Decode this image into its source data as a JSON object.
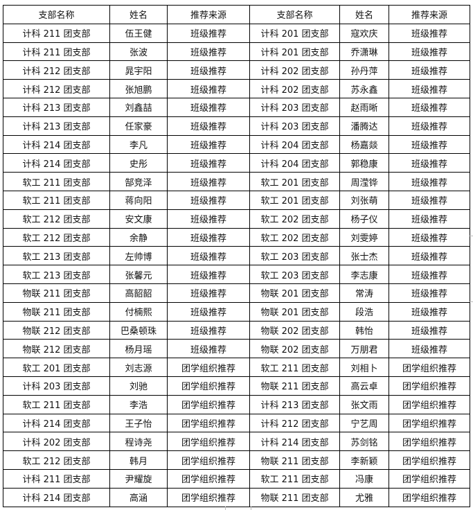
{
  "table": {
    "headers": [
      "支部名称",
      "姓名",
      "推荐来源",
      "支部名称",
      "姓名",
      "推荐来源"
    ],
    "rows": [
      [
        "计科 211 团支部",
        "伍王健",
        "班级推荐",
        "计科 201 团支部",
        "寇欢庆",
        "班级推荐"
      ],
      [
        "计科 211 团支部",
        "张波",
        "班级推荐",
        "计科 201 团支部",
        "乔潇琳",
        "班级推荐"
      ],
      [
        "计科 212 团支部",
        "晁宇阳",
        "班级推荐",
        "计科 202 团支部",
        "孙丹萍",
        "班级推荐"
      ],
      [
        "计科 212 团支部",
        "张旭鹏",
        "班级推荐",
        "计科 202 团支部",
        "苏永鑫",
        "班级推荐"
      ],
      [
        "计科 213 团支部",
        "刘鑫喆",
        "班级推荐",
        "计科 203 团支部",
        "赵雨晰",
        "班级推荐"
      ],
      [
        "计科 213 团支部",
        "任家豪",
        "班级推荐",
        "计科 203 团支部",
        "潘腾达",
        "班级推荐"
      ],
      [
        "计科 214 团支部",
        "李凡",
        "班级推荐",
        "计科 204 团支部",
        "杨嘉燚",
        "班级推荐"
      ],
      [
        "计科 214 团支部",
        "史彤",
        "班级推荐",
        "计科 204 团支部",
        "郭稳康",
        "班级推荐"
      ],
      [
        "软工 211 团支部",
        "郜竞泽",
        "班级推荐",
        "软工 201 团支部",
        "周滢铧",
        "班级推荐"
      ],
      [
        "软工 211 团支部",
        "蒋向阳",
        "班级推荐",
        "软工 201 团支部",
        "刘张萌",
        "班级推荐"
      ],
      [
        "软工 212 团支部",
        "安文康",
        "班级推荐",
        "软工 202 团支部",
        "杨子仪",
        "班级推荐"
      ],
      [
        "软工 212 团支部",
        "余静",
        "班级推荐",
        "软工 202 团支部",
        "刘雯婷",
        "班级推荐"
      ],
      [
        "软工 213 团支部",
        "左帅博",
        "班级推荐",
        "软工 203 团支部",
        "张士杰",
        "班级推荐"
      ],
      [
        "软工 213 团支部",
        "张馨元",
        "班级推荐",
        "软工 203 团支部",
        "李志康",
        "班级推荐"
      ],
      [
        "物联 211 团支部",
        "高韶韶",
        "班级推荐",
        "物联 201 团支部",
        "常涛",
        "班级推荐"
      ],
      [
        "物联 211 团支部",
        "付楠熙",
        "班级推荐",
        "物联 201 团支部",
        "段浩",
        "班级推荐"
      ],
      [
        "物联 212 团支部",
        "巴桑顿珠",
        "班级推荐",
        "物联 202 团支部",
        "韩怡",
        "班级推荐"
      ],
      [
        "物联 212 团支部",
        "杨月瑶",
        "班级推荐",
        "物联 202 团支部",
        "万朋君",
        "班级推荐"
      ],
      [
        "软工 201 团支部",
        "刘志源",
        "团学组织推荐",
        "软工 211 团支部",
        "刘相卜",
        "团学组织推荐"
      ],
      [
        "计科 203 团支部",
        "刘驰",
        "团学组织推荐",
        "物联 211 团支部",
        "高云卓",
        "团学组织推荐"
      ],
      [
        "软工 211 团支部",
        "李浩",
        "团学组织推荐",
        "计科 213 团支部",
        "张文雨",
        "团学组织推荐"
      ],
      [
        "计科 214 团支部",
        "王子怡",
        "团学组织推荐",
        "计科 212 团支部",
        "宁艺周",
        "团学组织推荐"
      ],
      [
        "计科 202 团支部",
        "程诗尧",
        "团学组织推荐",
        "计科 214 团支部",
        "苏剑铭",
        "团学组织推荐"
      ],
      [
        "软工 212 团支部",
        "韩月",
        "团学组织推荐",
        "物联 211 团支部",
        "李新颖",
        "团学组织推荐"
      ],
      [
        "计科 211 团支部",
        "尹耀旋",
        "团学组织推荐",
        "软工 211 团支部",
        "冯康",
        "团学组织推荐"
      ],
      [
        "计科 214 团支部",
        "高涵",
        "团学组织推荐",
        "物联 211 团支部",
        "尤雅",
        "团学组织推荐"
      ]
    ]
  }
}
